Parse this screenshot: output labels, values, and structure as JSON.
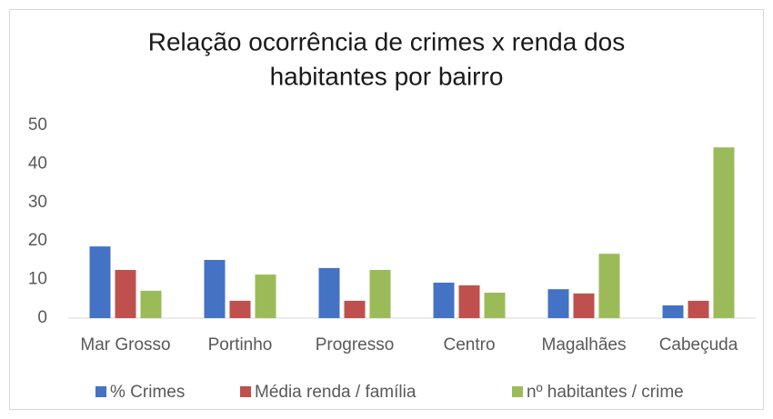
{
  "chart_data": {
    "type": "bar",
    "title": [
      "Relação ocorrência de crimes x renda dos",
      "habitantes por bairro"
    ],
    "categories": [
      "Mar Grosso",
      "Portinho",
      "Progresso",
      "Centro",
      "Magalhães",
      "Cabeçuda"
    ],
    "series": [
      {
        "name": "% Crimes",
        "color": "#4472c4",
        "values": [
          18.6,
          15.1,
          13.0,
          9.2,
          7.5,
          3.3
        ]
      },
      {
        "name": "Média renda / família",
        "color": "#c0504d",
        "values": [
          12.5,
          4.5,
          4.5,
          8.5,
          6.4,
          4.5
        ]
      },
      {
        "name": "nº habitantes / crime",
        "color": "#9bbb59",
        "values": [
          7.1,
          11.3,
          12.5,
          6.6,
          16.7,
          44.3
        ]
      }
    ],
    "ylim": [
      0,
      50
    ],
    "yticks": [
      0,
      10,
      20,
      30,
      40,
      50
    ],
    "grid": false,
    "legend": "bottom"
  }
}
